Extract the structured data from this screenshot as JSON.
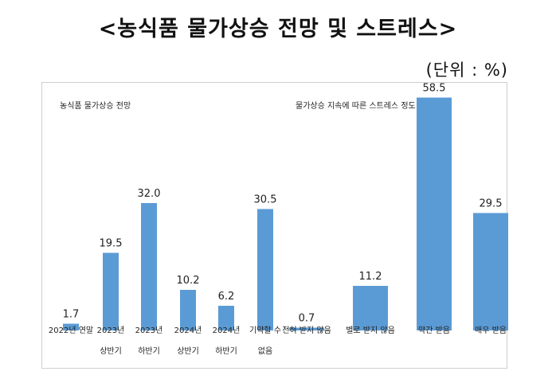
{
  "title": "<농식품 물가상승 전망 및 스트레스>",
  "unit": "(단위 : %)",
  "colors": {
    "bar": "#5b9bd5"
  },
  "chart_data": [
    {
      "type": "bar",
      "title": "농식품 물가상승 전망",
      "categories": [
        [
          "2022년 연말"
        ],
        [
          "2023년",
          "상반기"
        ],
        [
          "2023년",
          "하반기"
        ],
        [
          "2024년",
          "상반기"
        ],
        [
          "2024년",
          "하반기"
        ],
        [
          "기약할 수",
          "없음"
        ]
      ],
      "values": [
        1.7,
        19.5,
        32.0,
        10.2,
        6.2,
        30.5
      ],
      "value_labels": [
        "1.7",
        "19.5",
        "32.0",
        "10.2",
        "6.2",
        "30.5"
      ],
      "grid": false
    },
    {
      "type": "bar",
      "title": "물가상승 지속에 따른 스트레스 정도",
      "categories": [
        [
          "전혀 받지 않음"
        ],
        [
          "별로 받지 않음"
        ],
        [
          "약간 받음"
        ],
        [
          "매우 받음"
        ]
      ],
      "values": [
        0.7,
        11.2,
        58.5,
        29.5
      ],
      "value_labels": [
        "0.7",
        "11.2",
        "58.5",
        "29.5"
      ],
      "grid": false
    }
  ]
}
